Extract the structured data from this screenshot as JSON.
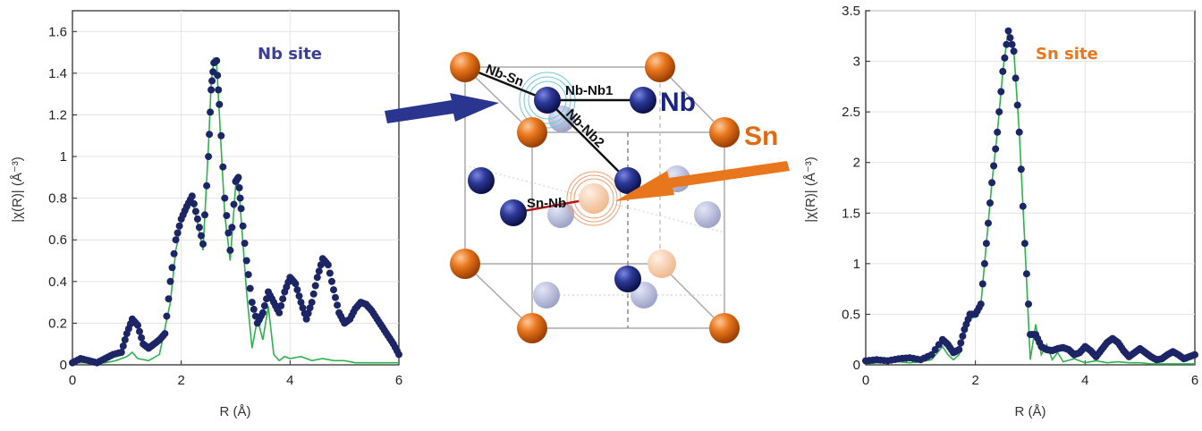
{
  "chart_data": [
    {
      "type": "line",
      "title": "",
      "annotation": "Nb site",
      "annotation_color": "#3b3f97",
      "xlabel": "R (Å)",
      "ylabel": "|χ(R)| (Å⁻³)",
      "xlim": [
        0,
        6
      ],
      "ylim": [
        0,
        1.7
      ],
      "xticks": [
        "0",
        "2",
        "4",
        "6"
      ],
      "yticks": [
        "0",
        "0.2",
        "0.4",
        "0.6",
        "0.8",
        "1",
        "1.2",
        "1.4",
        "1.6"
      ],
      "grid": true,
      "series": [
        {
          "role": "data",
          "style": "markers",
          "color": "#1c2565",
          "points": [
            [
              0,
              0.01
            ],
            [
              0.15,
              0.03
            ],
            [
              0.3,
              0.02
            ],
            [
              0.45,
              0.01
            ],
            [
              0.6,
              0.03
            ],
            [
              0.75,
              0.05
            ],
            [
              0.9,
              0.06
            ],
            [
              1.0,
              0.15
            ],
            [
              1.1,
              0.22
            ],
            [
              1.2,
              0.19
            ],
            [
              1.3,
              0.1
            ],
            [
              1.4,
              0.08
            ],
            [
              1.5,
              0.1
            ],
            [
              1.6,
              0.12
            ],
            [
              1.7,
              0.15
            ],
            [
              1.8,
              0.4
            ],
            [
              1.9,
              0.6
            ],
            [
              2.0,
              0.7
            ],
            [
              2.1,
              0.76
            ],
            [
              2.2,
              0.81
            ],
            [
              2.3,
              0.7
            ],
            [
              2.4,
              0.58
            ],
            [
              2.5,
              1.0
            ],
            [
              2.55,
              1.32
            ],
            [
              2.6,
              1.45
            ],
            [
              2.65,
              1.46
            ],
            [
              2.7,
              1.25
            ],
            [
              2.8,
              0.8
            ],
            [
              2.9,
              0.55
            ],
            [
              3.0,
              0.88
            ],
            [
              3.05,
              0.9
            ],
            [
              3.1,
              0.75
            ],
            [
              3.2,
              0.5
            ],
            [
              3.3,
              0.3
            ],
            [
              3.4,
              0.2
            ],
            [
              3.5,
              0.25
            ],
            [
              3.6,
              0.35
            ],
            [
              3.7,
              0.3
            ],
            [
              3.8,
              0.25
            ],
            [
              3.9,
              0.35
            ],
            [
              4.0,
              0.42
            ],
            [
              4.1,
              0.39
            ],
            [
              4.2,
              0.3
            ],
            [
              4.3,
              0.22
            ],
            [
              4.4,
              0.3
            ],
            [
              4.5,
              0.42
            ],
            [
              4.6,
              0.51
            ],
            [
              4.7,
              0.48
            ],
            [
              4.8,
              0.36
            ],
            [
              4.9,
              0.25
            ],
            [
              5.0,
              0.2
            ],
            [
              5.1,
              0.22
            ],
            [
              5.2,
              0.27
            ],
            [
              5.3,
              0.3
            ],
            [
              5.4,
              0.29
            ],
            [
              5.5,
              0.26
            ],
            [
              5.6,
              0.22
            ],
            [
              5.7,
              0.18
            ],
            [
              5.8,
              0.14
            ],
            [
              5.9,
              0.1
            ],
            [
              6.0,
              0.05
            ]
          ]
        },
        {
          "role": "fit",
          "style": "line",
          "color": "#2db34a",
          "points": [
            [
              0,
              0.01
            ],
            [
              0.2,
              0.01
            ],
            [
              0.4,
              0.01
            ],
            [
              0.6,
              0.01
            ],
            [
              0.8,
              0.02
            ],
            [
              1.0,
              0.04
            ],
            [
              1.1,
              0.06
            ],
            [
              1.2,
              0.03
            ],
            [
              1.4,
              0.02
            ],
            [
              1.6,
              0.05
            ],
            [
              1.8,
              0.3
            ],
            [
              1.9,
              0.55
            ],
            [
              2.0,
              0.68
            ],
            [
              2.1,
              0.73
            ],
            [
              2.2,
              0.79
            ],
            [
              2.3,
              0.68
            ],
            [
              2.4,
              0.55
            ],
            [
              2.5,
              1.05
            ],
            [
              2.55,
              1.35
            ],
            [
              2.6,
              1.47
            ],
            [
              2.65,
              1.45
            ],
            [
              2.7,
              1.2
            ],
            [
              2.8,
              0.72
            ],
            [
              2.9,
              0.5
            ],
            [
              3.0,
              0.86
            ],
            [
              3.05,
              0.88
            ],
            [
              3.1,
              0.7
            ],
            [
              3.2,
              0.35
            ],
            [
              3.3,
              0.08
            ],
            [
              3.4,
              0.22
            ],
            [
              3.5,
              0.12
            ],
            [
              3.6,
              0.28
            ],
            [
              3.7,
              0.05
            ],
            [
              3.8,
              0.02
            ],
            [
              3.9,
              0.04
            ],
            [
              4.0,
              0.03
            ],
            [
              4.2,
              0.04
            ],
            [
              4.4,
              0.02
            ],
            [
              4.6,
              0.03
            ],
            [
              4.8,
              0.02
            ],
            [
              5.0,
              0.02
            ],
            [
              5.2,
              0.01
            ],
            [
              5.4,
              0.01
            ],
            [
              5.6,
              0.01
            ],
            [
              5.8,
              0.01
            ],
            [
              6.0,
              0.01
            ]
          ]
        }
      ]
    },
    {
      "type": "line",
      "title": "",
      "annotation": "Sn site",
      "annotation_color": "#e8761c",
      "xlabel": "R (Å)",
      "ylabel": "|χ(R)| (Å⁻³)",
      "xlim": [
        0,
        6
      ],
      "ylim": [
        0,
        3.5
      ],
      "xticks": [
        "0",
        "2",
        "4",
        "6"
      ],
      "yticks": [
        "0",
        "0.5",
        "1",
        "1.5",
        "2",
        "2.5",
        "3",
        "3.5"
      ],
      "grid": true,
      "series": [
        {
          "role": "data",
          "style": "markers",
          "color": "#1c2565",
          "points": [
            [
              0,
              0.04
            ],
            [
              0.2,
              0.05
            ],
            [
              0.4,
              0.04
            ],
            [
              0.6,
              0.06
            ],
            [
              0.8,
              0.07
            ],
            [
              1.0,
              0.05
            ],
            [
              1.2,
              0.1
            ],
            [
              1.4,
              0.25
            ],
            [
              1.5,
              0.2
            ],
            [
              1.6,
              0.12
            ],
            [
              1.7,
              0.15
            ],
            [
              1.8,
              0.35
            ],
            [
              1.9,
              0.5
            ],
            [
              2.0,
              0.5
            ],
            [
              2.1,
              0.6
            ],
            [
              2.2,
              1.2
            ],
            [
              2.3,
              1.8
            ],
            [
              2.4,
              2.3
            ],
            [
              2.5,
              2.9
            ],
            [
              2.6,
              3.3
            ],
            [
              2.7,
              3.1
            ],
            [
              2.8,
              2.3
            ],
            [
              2.9,
              1.2
            ],
            [
              3.0,
              0.3
            ],
            [
              3.1,
              0.3
            ],
            [
              3.2,
              0.18
            ],
            [
              3.3,
              0.15
            ],
            [
              3.4,
              0.14
            ],
            [
              3.5,
              0.16
            ],
            [
              3.6,
              0.17
            ],
            [
              3.7,
              0.15
            ],
            [
              3.8,
              0.1
            ],
            [
              3.9,
              0.12
            ],
            [
              4.0,
              0.18
            ],
            [
              4.1,
              0.14
            ],
            [
              4.2,
              0.08
            ],
            [
              4.3,
              0.15
            ],
            [
              4.4,
              0.22
            ],
            [
              4.5,
              0.26
            ],
            [
              4.6,
              0.22
            ],
            [
              4.7,
              0.14
            ],
            [
              4.8,
              0.08
            ],
            [
              4.9,
              0.12
            ],
            [
              5.0,
              0.16
            ],
            [
              5.1,
              0.12
            ],
            [
              5.2,
              0.08
            ],
            [
              5.3,
              0.05
            ],
            [
              5.4,
              0.06
            ],
            [
              5.5,
              0.1
            ],
            [
              5.6,
              0.13
            ],
            [
              5.7,
              0.1
            ],
            [
              5.8,
              0.06
            ],
            [
              5.9,
              0.08
            ],
            [
              6.0,
              0.1
            ]
          ]
        },
        {
          "role": "fit",
          "style": "line",
          "color": "#2db34a",
          "points": [
            [
              0,
              0.01
            ],
            [
              0.2,
              0.02
            ],
            [
              0.4,
              0.02
            ],
            [
              0.6,
              0.03
            ],
            [
              0.8,
              0.02
            ],
            [
              1.0,
              0.03
            ],
            [
              1.2,
              0.05
            ],
            [
              1.4,
              0.18
            ],
            [
              1.5,
              0.1
            ],
            [
              1.6,
              0.05
            ],
            [
              1.7,
              0.1
            ],
            [
              1.8,
              0.3
            ],
            [
              1.9,
              0.45
            ],
            [
              2.0,
              0.48
            ],
            [
              2.1,
              0.6
            ],
            [
              2.2,
              1.2
            ],
            [
              2.3,
              1.8
            ],
            [
              2.4,
              2.3
            ],
            [
              2.5,
              2.9
            ],
            [
              2.6,
              3.32
            ],
            [
              2.7,
              3.1
            ],
            [
              2.8,
              2.3
            ],
            [
              2.9,
              1.2
            ],
            [
              3.0,
              0.05
            ],
            [
              3.1,
              0.4
            ],
            [
              3.2,
              0.1
            ],
            [
              3.3,
              0.2
            ],
            [
              3.4,
              0.05
            ],
            [
              3.5,
              0.12
            ],
            [
              3.6,
              0.03
            ],
            [
              3.8,
              0.06
            ],
            [
              4.0,
              0.02
            ],
            [
              4.2,
              0.04
            ],
            [
              4.4,
              0.02
            ],
            [
              4.6,
              0.03
            ],
            [
              4.8,
              0.02
            ],
            [
              5.0,
              0.02
            ],
            [
              5.2,
              0.01
            ],
            [
              5.4,
              0.01
            ],
            [
              5.6,
              0.01
            ],
            [
              5.8,
              0.01
            ],
            [
              6.0,
              0.01
            ]
          ]
        }
      ]
    }
  ],
  "structure": {
    "elements": {
      "nb": {
        "label": "Nb",
        "color": "#1b2680"
      },
      "sn": {
        "label": "Sn",
        "color": "#e06a12"
      }
    },
    "bonds": {
      "nb_sn": "Nb-Sn",
      "nb_nb1": "Nb-Nb1",
      "nb_nb2": "Nb-Nb2",
      "sn_nb": "Sn-Nb"
    },
    "sn_nb_color": "#b01818",
    "arrow_colors": {
      "nb": "#2a3590",
      "sn": "#e8761c"
    }
  }
}
